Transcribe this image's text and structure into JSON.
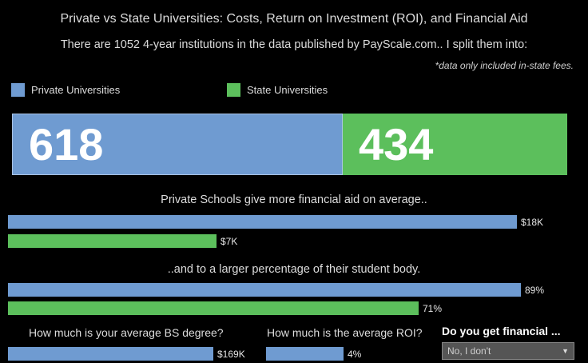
{
  "header": {
    "title": "Private vs State Universities: Costs, Return on Investment (ROI), and Financial Aid",
    "subtitle": "There are 1052 4-year institutions in the data published by PayScale.com.. I split them into:",
    "note": "*data only included in-state fees."
  },
  "legend": {
    "private_label": "Private Universities",
    "state_label": "State Universities"
  },
  "colors": {
    "private": "#6f9bd1",
    "state": "#5cbf5c"
  },
  "counts": {
    "private": "618",
    "state": "434",
    "private_share": 0.5875
  },
  "aid_amount": {
    "label": "Private Schools give more financial aid on average..",
    "private_value": "$18K",
    "state_value": "$7K",
    "private_fraction": 1.0,
    "state_fraction": 0.41
  },
  "aid_percent": {
    "label": "..and to a larger percentage of their student body.",
    "private_value": "89%",
    "state_value": "71%",
    "private_fraction": 1.0,
    "state_fraction": 0.8
  },
  "questions": {
    "degree_cost_label": "How much is your average BS degree?",
    "degree_cost_value": "$169K",
    "roi_label": "How much is the average ROI?",
    "roi_value": "4%",
    "financial_label": "Do you get financial ...",
    "financial_select_value": "No, I don't"
  }
}
